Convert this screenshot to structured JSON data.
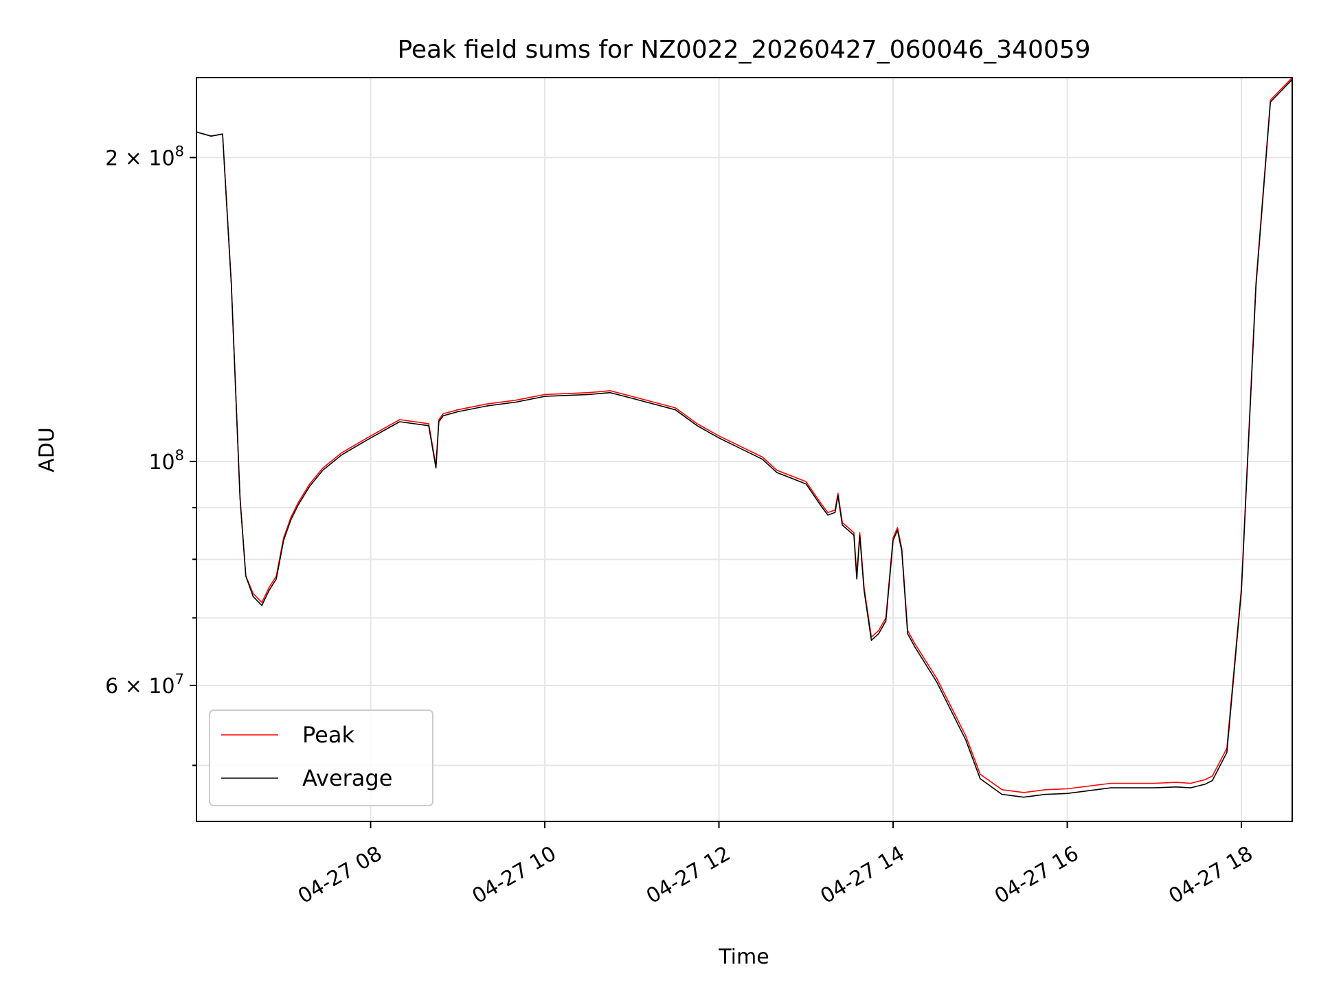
{
  "chart_data": {
    "type": "line",
    "title": "Peak field sums for NZ0022_20260427_060046_340059",
    "xlabel": "Time",
    "ylabel": "ADU",
    "yscale": "log",
    "ylim": [
      44000000,
      240000000
    ],
    "xlim": [
      "04-27 06:00",
      "04-27 18:35"
    ],
    "x_ticks": [
      {
        "value": "04-27 08:00",
        "label": "04-27 08"
      },
      {
        "value": "04-27 10:00",
        "label": "04-27 10"
      },
      {
        "value": "04-27 12:00",
        "label": "04-27 12"
      },
      {
        "value": "04-27 14:00",
        "label": "04-27 14"
      },
      {
        "value": "04-27 16:00",
        "label": "04-27 16"
      },
      {
        "value": "04-27 18:00",
        "label": "04-27 18"
      }
    ],
    "y_ticks": [
      {
        "value": 200000000,
        "base": "2 × 10",
        "exp": "8"
      },
      {
        "value": 100000000,
        "base": "10",
        "exp": "8"
      },
      {
        "value": 60000000,
        "base": "6 × 10",
        "exp": "7"
      }
    ],
    "y_minor_ticks": [
      50000000,
      70000000,
      80000000,
      90000000
    ],
    "grid": true,
    "legend_position": "lower-left",
    "series": [
      {
        "name": "Peak",
        "color": "#ff0000",
        "x": [
          "04-27 06:00",
          "04-27 06:10",
          "04-27 06:18",
          "04-27 06:24",
          "04-27 06:30",
          "04-27 06:34",
          "04-27 06:39",
          "04-27 06:45",
          "04-27 06:50",
          "04-27 06:55",
          "04-27 07:00",
          "04-27 07:05",
          "04-27 07:10",
          "04-27 07:18",
          "04-27 07:27",
          "04-27 07:40",
          "04-27 07:50",
          "04-27 08:00",
          "04-27 08:20",
          "04-27 08:40",
          "04-27 08:45",
          "04-27 08:47",
          "04-27 08:50",
          "04-27 09:00",
          "04-27 09:20",
          "04-27 09:40",
          "04-27 10:00",
          "04-27 10:30",
          "04-27 10:45",
          "04-27 11:00",
          "04-27 11:30",
          "04-27 11:45",
          "04-27 12:00",
          "04-27 12:30",
          "04-27 12:40",
          "04-27 13:00",
          "04-27 13:10",
          "04-27 13:15",
          "04-27 13:20",
          "04-27 13:22",
          "04-27 13:25",
          "04-27 13:33",
          "04-27 13:35",
          "04-27 13:37",
          "04-27 13:40",
          "04-27 13:45",
          "04-27 13:50",
          "04-27 13:55",
          "04-27 14:00",
          "04-27 14:03",
          "04-27 14:06",
          "04-27 14:10",
          "04-27 14:15",
          "04-27 14:30",
          "04-27 14:50",
          "04-27 15:00",
          "04-27 15:15",
          "04-27 15:30",
          "04-27 15:45",
          "04-27 16:00",
          "04-27 16:30",
          "04-27 17:00",
          "04-27 17:15",
          "04-27 17:25",
          "04-27 17:35",
          "04-27 17:40",
          "04-27 17:50",
          "04-27 18:00",
          "04-27 18:10",
          "04-27 18:20",
          "04-27 18:35"
        ],
        "values": [
          212000000,
          210000000,
          211000000,
          150000000,
          92000000,
          77000000,
          74000000,
          72500000,
          75000000,
          77000000,
          84000000,
          88000000,
          91000000,
          95000000,
          98500000,
          102000000,
          104000000,
          106000000,
          110000000,
          109000000,
          99000000,
          110000000,
          111500000,
          112500000,
          114000000,
          115000000,
          116500000,
          117000000,
          117500000,
          116000000,
          113000000,
          109000000,
          106000000,
          101000000,
          98000000,
          95500000,
          91000000,
          89000000,
          89500000,
          93000000,
          87000000,
          85000000,
          77000000,
          85000000,
          75000000,
          67000000,
          68000000,
          70000000,
          84000000,
          86000000,
          82000000,
          68000000,
          66000000,
          61000000,
          53500000,
          49000000,
          47300000,
          47000000,
          47300000,
          47400000,
          48000000,
          48000000,
          48100000,
          48000000,
          48400000,
          48800000,
          52000000,
          75000000,
          150000000,
          228000000,
          240000000
        ]
      },
      {
        "name": "Average",
        "color": "#000000",
        "x": [
          "04-27 06:00",
          "04-27 06:10",
          "04-27 06:18",
          "04-27 06:24",
          "04-27 06:30",
          "04-27 06:34",
          "04-27 06:39",
          "04-27 06:45",
          "04-27 06:50",
          "04-27 06:55",
          "04-27 07:00",
          "04-27 07:05",
          "04-27 07:10",
          "04-27 07:18",
          "04-27 07:27",
          "04-27 07:40",
          "04-27 07:50",
          "04-27 08:00",
          "04-27 08:20",
          "04-27 08:40",
          "04-27 08:45",
          "04-27 08:47",
          "04-27 08:50",
          "04-27 09:00",
          "04-27 09:20",
          "04-27 09:40",
          "04-27 10:00",
          "04-27 10:30",
          "04-27 10:45",
          "04-27 11:00",
          "04-27 11:30",
          "04-27 11:45",
          "04-27 12:00",
          "04-27 12:30",
          "04-27 12:40",
          "04-27 13:00",
          "04-27 13:10",
          "04-27 13:15",
          "04-27 13:20",
          "04-27 13:22",
          "04-27 13:25",
          "04-27 13:33",
          "04-27 13:35",
          "04-27 13:37",
          "04-27 13:40",
          "04-27 13:45",
          "04-27 13:50",
          "04-27 13:55",
          "04-27 14:00",
          "04-27 14:03",
          "04-27 14:06",
          "04-27 14:10",
          "04-27 14:15",
          "04-27 14:30",
          "04-27 14:50",
          "04-27 15:00",
          "04-27 15:15",
          "04-27 15:30",
          "04-27 15:45",
          "04-27 16:00",
          "04-27 16:30",
          "04-27 17:00",
          "04-27 17:15",
          "04-27 17:25",
          "04-27 17:35",
          "04-27 17:40",
          "04-27 17:50",
          "04-27 18:00",
          "04-27 18:10",
          "04-27 18:20",
          "04-27 18:35"
        ],
        "values": [
          212000000,
          210000000,
          211000000,
          150000000,
          92000000,
          77000000,
          73500000,
          72000000,
          74500000,
          76500000,
          83500000,
          87500000,
          90500000,
          94500000,
          98000000,
          101500000,
          103500000,
          105500000,
          109500000,
          108500000,
          98500000,
          109500000,
          111000000,
          112000000,
          113500000,
          114500000,
          116000000,
          116500000,
          117000000,
          115500000,
          112500000,
          108500000,
          105500000,
          100500000,
          97500000,
          95000000,
          90500000,
          88500000,
          89000000,
          92500000,
          86500000,
          84500000,
          76500000,
          84500000,
          74500000,
          66500000,
          67500000,
          69500000,
          83500000,
          85500000,
          81500000,
          67500000,
          65500000,
          60500000,
          53000000,
          48500000,
          46800000,
          46500000,
          46800000,
          46900000,
          47500000,
          47500000,
          47600000,
          47500000,
          47900000,
          48300000,
          51500000,
          74500000,
          149000000,
          227000000,
          239000000
        ]
      }
    ]
  }
}
